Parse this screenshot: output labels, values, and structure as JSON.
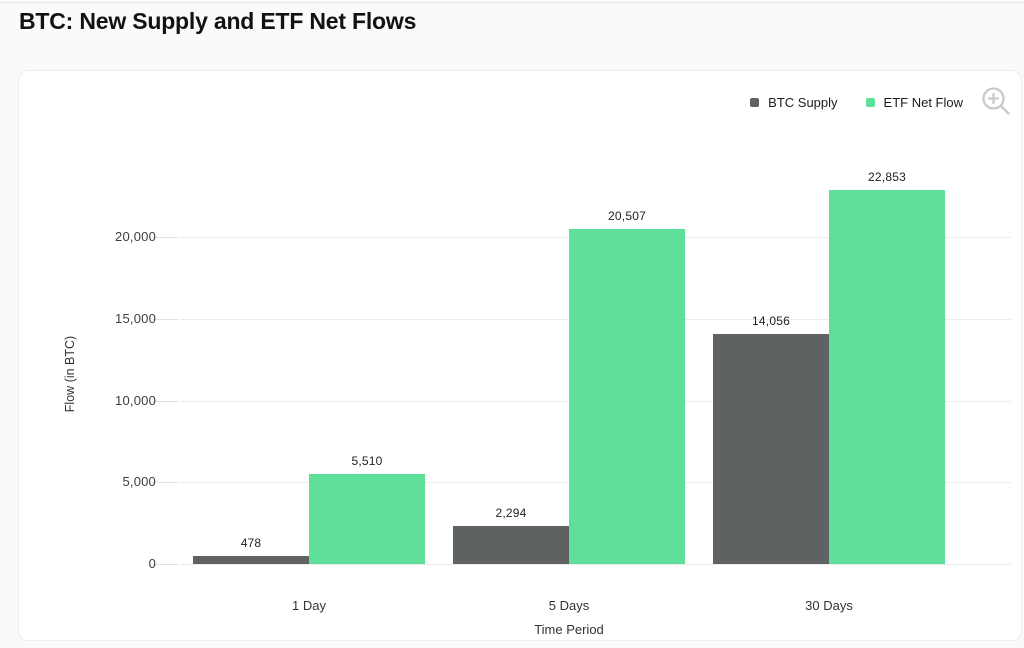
{
  "page": {
    "title": "BTC: New Supply and ETF Net Flows"
  },
  "icons": {
    "zoom": "zoom-in-magnifier",
    "zoom_color": "#c9c9c9"
  },
  "colors": {
    "page_bg": "#fafafa",
    "card_bg": "#ffffff",
    "card_border": "#ececec",
    "btc_supply": "#5e6262",
    "etf_net_flow": "#5fe09a",
    "gridline": "#ededed"
  },
  "chart_data": {
    "type": "bar",
    "title": "BTC: New Supply and ETF Net Flows",
    "categories": [
      "1 Day",
      "5 Days",
      "30 Days"
    ],
    "series": [
      {
        "name": "BTC Supply",
        "color": "#5e6262",
        "values": [
          478,
          2294,
          14056
        ],
        "labels": [
          "478",
          "2,294",
          "14,056"
        ]
      },
      {
        "name": "ETF Net Flow",
        "color": "#5fe09a",
        "values": [
          5510,
          20507,
          22853
        ],
        "labels": [
          "5,510",
          "20,507",
          "22,853"
        ]
      }
    ],
    "xlabel": "Time Period",
    "ylabel": "Flow (in BTC)",
    "ylim": [
      0,
      25000
    ],
    "yticks": [
      0,
      5000,
      10000,
      15000,
      20000
    ],
    "ytick_labels": [
      "0",
      "5,000",
      "10,000",
      "15,000",
      "20,000"
    ],
    "grid": true,
    "legend_position": "top-right",
    "bar_value_labels": true
  }
}
